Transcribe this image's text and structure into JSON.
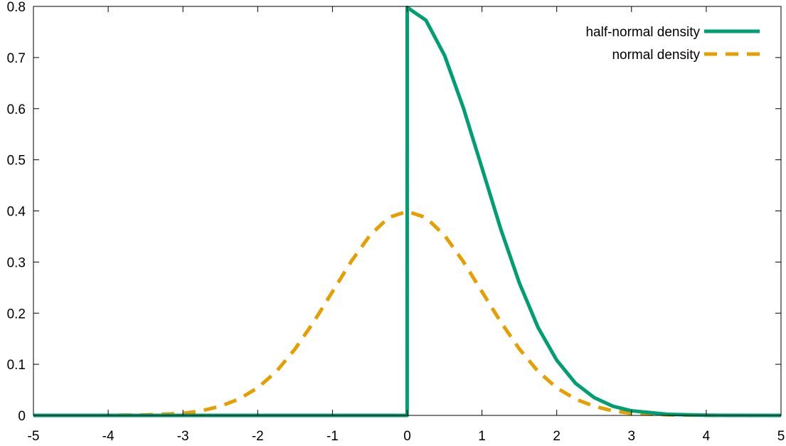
{
  "chart_data": {
    "type": "line",
    "title": "",
    "xlabel": "",
    "ylabel": "",
    "xlim": [
      -5,
      5
    ],
    "ylim": [
      0,
      0.8
    ],
    "x_ticks": [
      "-5",
      "-4",
      "-3",
      "-2",
      "-1",
      "0",
      "1",
      "2",
      "3",
      "4",
      "5"
    ],
    "y_ticks": [
      "0",
      "0.1",
      "0.2",
      "0.3",
      "0.4",
      "0.5",
      "0.6",
      "0.7",
      "0.8"
    ],
    "grid": false,
    "legend_position": "top-right",
    "reference_line": {
      "x": 0,
      "style": "dotted",
      "color": "#000000"
    },
    "series": [
      {
        "name": "half-normal density",
        "color": "#009e73",
        "style": "solid",
        "points": [
          [
            -5,
            0
          ],
          [
            -0.001,
            0
          ],
          [
            0,
            0.798
          ],
          [
            0.25,
            0.773
          ],
          [
            0.5,
            0.704
          ],
          [
            0.75,
            0.602
          ],
          [
            1,
            0.484
          ],
          [
            1.25,
            0.365
          ],
          [
            1.5,
            0.259
          ],
          [
            1.75,
            0.172
          ],
          [
            2,
            0.108
          ],
          [
            2.25,
            0.063
          ],
          [
            2.5,
            0.035
          ],
          [
            2.75,
            0.018
          ],
          [
            3,
            0.009
          ],
          [
            3.5,
            0.002
          ],
          [
            4,
            0.0003
          ],
          [
            5,
            0
          ]
        ]
      },
      {
        "name": "normal density",
        "color": "#e69f00",
        "style": "dashed",
        "points": [
          [
            -5,
            0
          ],
          [
            -4,
            0.0001
          ],
          [
            -3.5,
            0.001
          ],
          [
            -3,
            0.004
          ],
          [
            -2.75,
            0.009
          ],
          [
            -2.5,
            0.018
          ],
          [
            -2.25,
            0.032
          ],
          [
            -2,
            0.054
          ],
          [
            -1.75,
            0.086
          ],
          [
            -1.5,
            0.13
          ],
          [
            -1.25,
            0.183
          ],
          [
            -1,
            0.242
          ],
          [
            -0.75,
            0.301
          ],
          [
            -0.5,
            0.352
          ],
          [
            -0.25,
            0.387
          ],
          [
            0,
            0.399
          ],
          [
            0.25,
            0.387
          ],
          [
            0.5,
            0.352
          ],
          [
            0.75,
            0.301
          ],
          [
            1,
            0.242
          ],
          [
            1.25,
            0.183
          ],
          [
            1.5,
            0.13
          ],
          [
            1.75,
            0.086
          ],
          [
            2,
            0.054
          ],
          [
            2.25,
            0.032
          ],
          [
            2.5,
            0.018
          ],
          [
            2.75,
            0.009
          ],
          [
            3,
            0.004
          ],
          [
            3.5,
            0.001
          ],
          [
            4,
            0.0001
          ],
          [
            5,
            0
          ]
        ]
      }
    ]
  }
}
